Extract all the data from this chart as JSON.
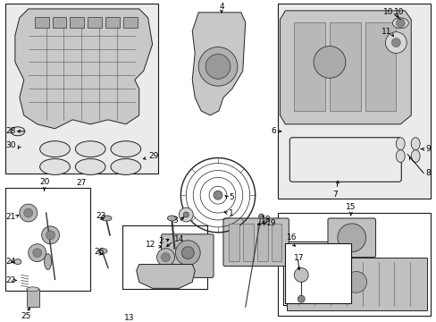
{
  "bg_color": "#ffffff",
  "fig_width": 4.89,
  "fig_height": 3.6,
  "dpi": 100,
  "image_url": "target_embedded"
}
